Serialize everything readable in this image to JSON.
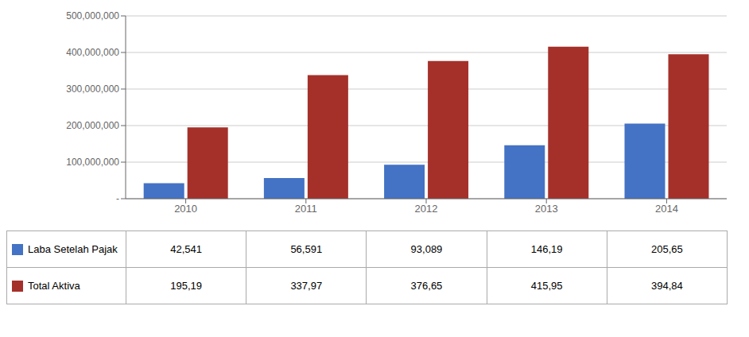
{
  "chart_data": {
    "type": "bar",
    "categories": [
      "2010",
      "2011",
      "2012",
      "2013",
      "2014"
    ],
    "series": [
      {
        "name": "Laba Setelah Pajak",
        "color": "#4472C4",
        "values": [
          42541000,
          56591000,
          93089000,
          146190000,
          205650000
        ],
        "value_labels": [
          "42,541",
          "56,591",
          "93,089",
          "146,19",
          "205,65"
        ]
      },
      {
        "name": "Total Aktiva",
        "color": "#A5302A",
        "values": [
          195190000,
          337970000,
          376650000,
          415950000,
          394840000
        ],
        "value_labels": [
          "195,19",
          "337,97",
          "376,65",
          "415,95",
          "394,84"
        ]
      }
    ],
    "ylim": [
      0,
      500000000
    ],
    "yticks": [
      {
        "value": 0,
        "label": "-"
      },
      {
        "value": 100000000,
        "label": "100,000,000"
      },
      {
        "value": 200000000,
        "label": "200,000,000"
      },
      {
        "value": 300000000,
        "label": "300,000,000"
      },
      {
        "value": 400000000,
        "label": "400,000,000"
      },
      {
        "value": 500000000,
        "label": "500,000,000"
      }
    ],
    "grid": true,
    "legend": "bottom"
  }
}
